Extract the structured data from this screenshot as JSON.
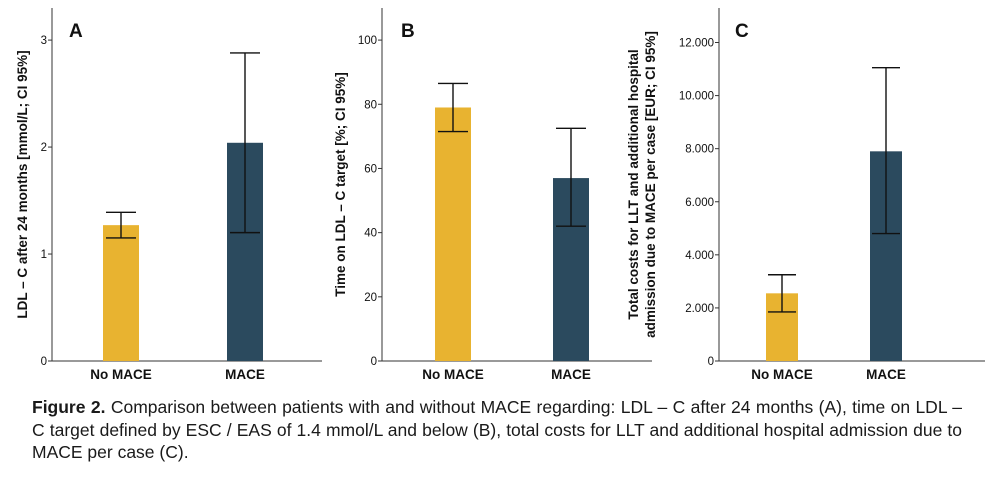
{
  "chart_data": [
    {
      "type": "bar",
      "panel": "A",
      "categories": [
        "No MACE",
        "MACE"
      ],
      "values": [
        1.27,
        2.04
      ],
      "ci_lower": [
        1.15,
        1.2
      ],
      "ci_upper": [
        1.39,
        2.88
      ],
      "ylabel": "LDL – C after 24 months [mmol/L; CI 95%]",
      "ylim": [
        0,
        3.3
      ],
      "yticks": [
        0,
        1,
        2,
        3
      ],
      "ytick_labels": [
        "0",
        "1",
        "2",
        "3"
      ],
      "grid": false
    },
    {
      "type": "bar",
      "panel": "B",
      "categories": [
        "No MACE",
        "MACE"
      ],
      "values": [
        79,
        57
      ],
      "ci_lower": [
        71.5,
        42
      ],
      "ci_upper": [
        86.5,
        72.5
      ],
      "ylabel": "Time on LDL – C target [%; CI 95%]",
      "ylim": [
        0,
        110
      ],
      "yticks": [
        0,
        20,
        40,
        60,
        80,
        100
      ],
      "ytick_labels": [
        "0",
        "20",
        "40",
        "60",
        "80",
        "100"
      ],
      "grid": false
    },
    {
      "type": "bar",
      "panel": "C",
      "categories": [
        "No MACE",
        "MACE"
      ],
      "values": [
        2550,
        7900
      ],
      "ci_lower": [
        1850,
        4800
      ],
      "ci_upper": [
        3250,
        11050
      ],
      "ylabel": [
        "Total costs for LLT and additional hospital",
        "admission due to MACE per case [EUR; CI 95%]"
      ],
      "ylim": [
        0,
        13300
      ],
      "yticks": [
        0,
        2000,
        4000,
        6000,
        8000,
        10000,
        12000
      ],
      "ytick_labels": [
        "0",
        "2.000",
        "4.000",
        "6.000",
        "8.000",
        "10.000",
        "12.000"
      ],
      "grid": false
    }
  ],
  "colors": {
    "no_mace": "#e8b330",
    "mace": "#2b4a5e",
    "axis": "#333333"
  },
  "caption": {
    "label": "Figure 2.",
    "text": " Comparison between patients with and without MACE regarding: LDL – C after 24 months (A), time on LDL – C target defined by ESC / EAS of 1.4 mmol/L and below (B), total costs for LLT and additional hospital admission due to MACE per case (C)."
  }
}
